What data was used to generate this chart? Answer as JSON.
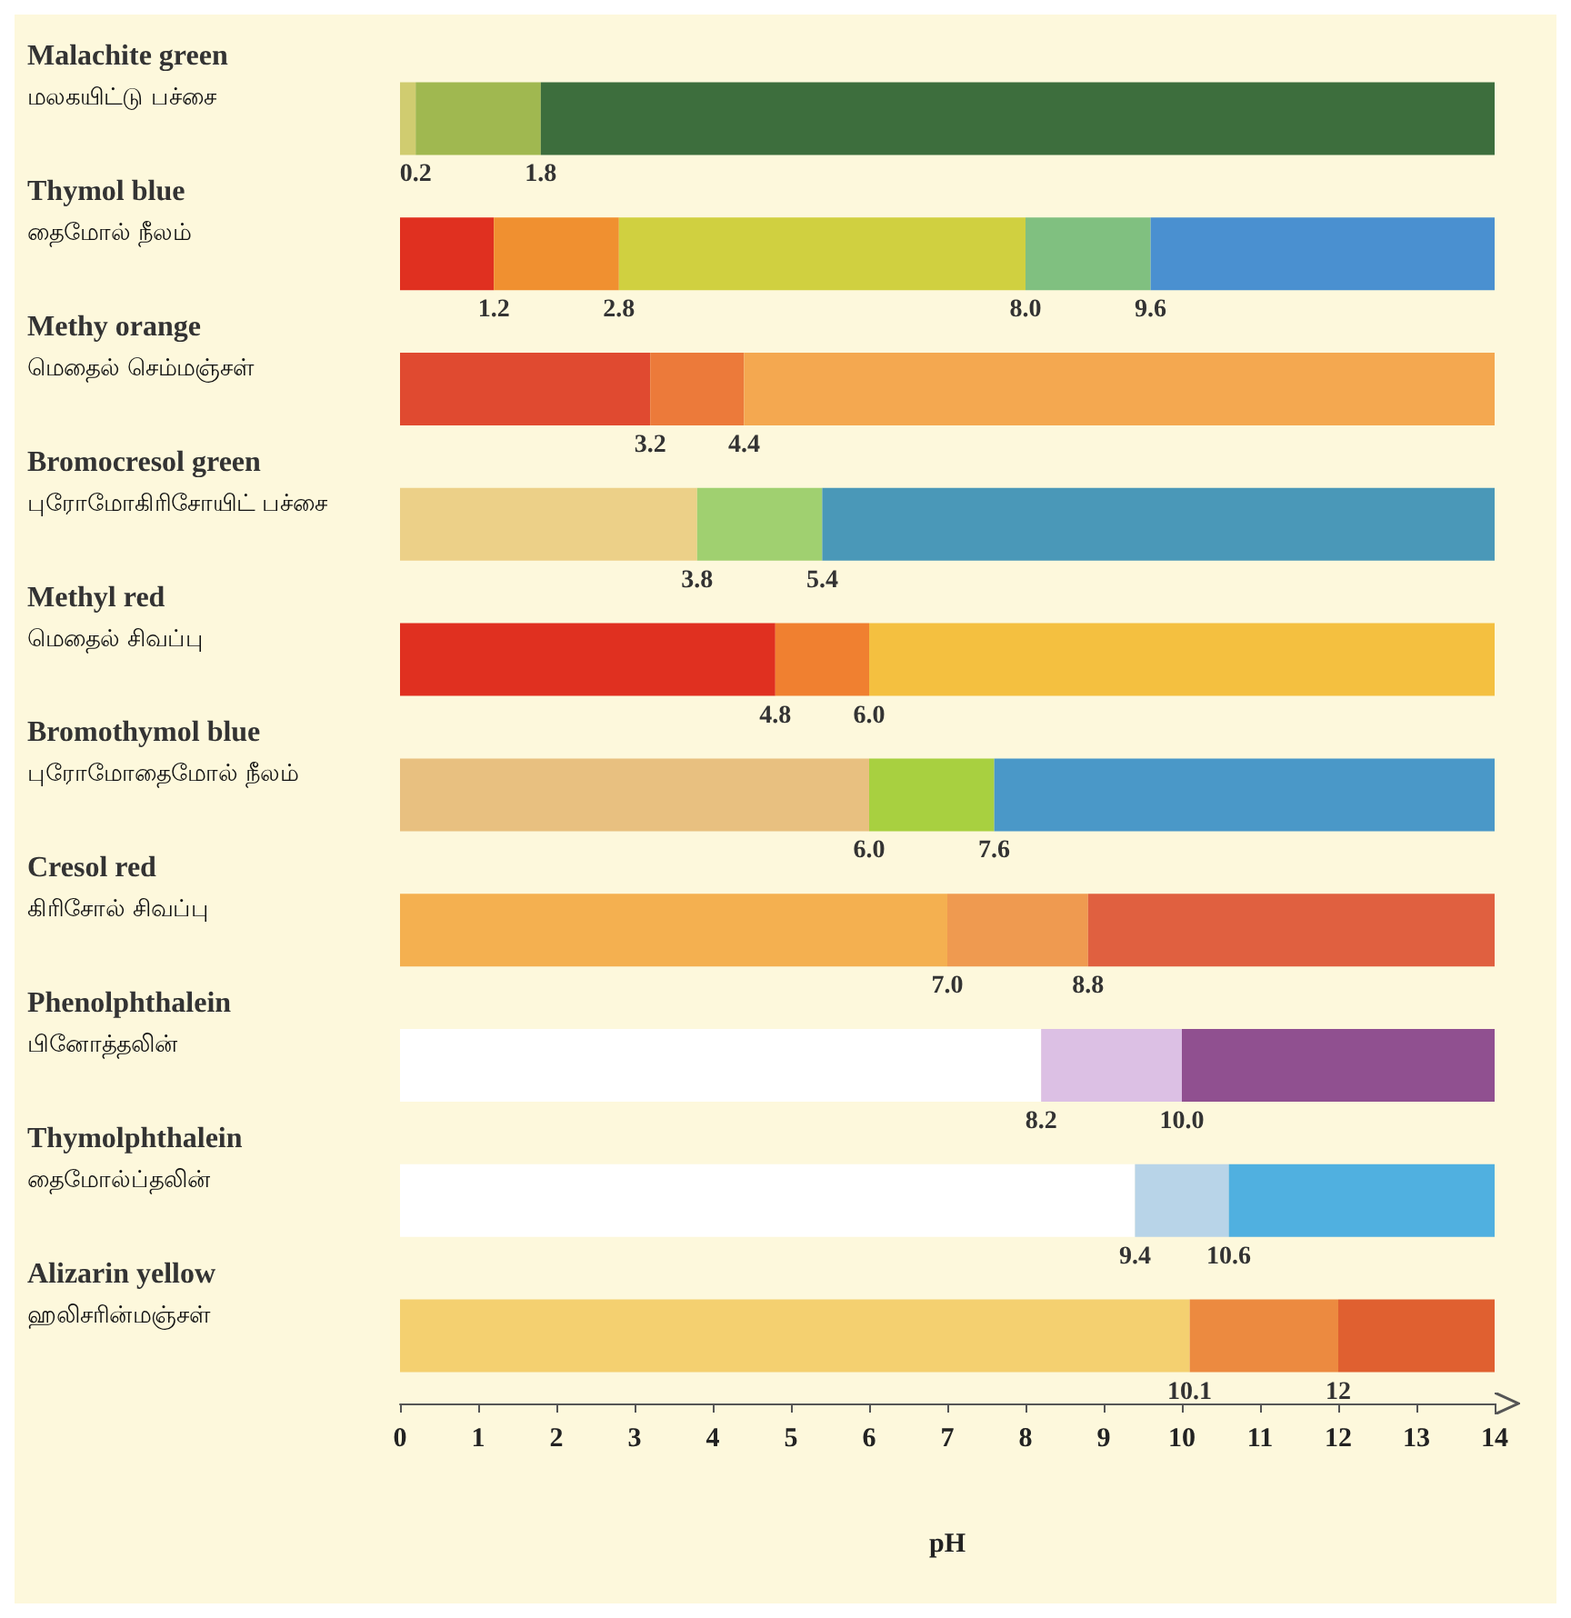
{
  "chart_data": {
    "type": "bar",
    "orientation": "horizontal",
    "stacked": true,
    "xlabel": "pH",
    "xlim": [
      0,
      14
    ],
    "xticks": [
      0,
      1,
      2,
      3,
      4,
      5,
      6,
      7,
      8,
      9,
      10,
      11,
      12,
      13,
      14
    ],
    "categories": [
      "Malachite green\nமலகயிட்டு பச்சை",
      "Thymol blue\nதைமோல் நீலம்",
      "Methy orange\nமெதைல் செம்மஞ்சள்",
      "Bromocresol green\nபுரோமோகிரிசோயிட் பச்சை",
      "Methyl red\nமெதைல் சிவப்பு",
      "Bromothymol blue\nபுரோமோதைமோல் நீலம்",
      "Cresol red\nகிரிசோல் சிவப்பு",
      "Phenolphthalein\nபினோத்தலின்",
      "Thymolphthalein\nதைமோல்ப்தலின்",
      "Alizarin yellow\nஹலிசரின்மஞ்சள்"
    ],
    "series": [
      {
        "values": [
          0.2,
          1.2,
          3.2,
          3.8,
          4.8,
          6.0,
          7.0,
          8.2,
          9.4,
          10.1
        ],
        "colors": [
          "#d0cc70",
          "#e03020",
          "#e04a30",
          "#ecd088",
          "#e03020",
          "#e8c080",
          "#f4b050",
          "#ffffff",
          "#ffffff",
          "#f4d070"
        ]
      },
      {
        "values": [
          1.6,
          1.6,
          1.2,
          1.6,
          1.2,
          1.6,
          1.8,
          1.8,
          1.2,
          1.9
        ],
        "colors": [
          "#a0b850",
          "#f09030",
          "#ec7a3a",
          "#a0d070",
          "#f08030",
          "#a8d040",
          "#ef9a50",
          "#dcc0e4",
          "#b8d4e8",
          "#ec8a40"
        ]
      },
      {
        "values": [
          12.2,
          5.2,
          9.6,
          8.6,
          8.0,
          6.4,
          5.2,
          4.0,
          3.4,
          2.0
        ],
        "colors": [
          "#3d6e3d",
          "#d0d040",
          "#f4a850",
          "#4a98b8",
          "#f4c040",
          "#4a98c8",
          "#e06040",
          "#905090",
          "#50b0e0",
          "#e06030"
        ]
      },
      {
        "values": [
          null,
          1.6,
          null,
          null,
          null,
          null,
          null,
          null,
          null,
          null
        ],
        "colors": [
          null,
          "#80c080",
          null,
          null,
          null,
          null,
          null,
          null,
          null,
          null
        ]
      },
      {
        "values": [
          null,
          4.4,
          null,
          null,
          null,
          null,
          null,
          null,
          null,
          null
        ],
        "colors": [
          null,
          "#4a90d0",
          null,
          null,
          null,
          null,
          null,
          null,
          null,
          null
        ]
      }
    ],
    "annotations": [
      {
        "text": "0.2",
        "x": 0.2,
        "y": "Malachite green\nமலகயிட்டு பச்சை"
      },
      {
        "text": "1.8",
        "x": 1.8,
        "y": "Malachite green\nமலகயிட்டு பச்சை"
      },
      {
        "text": "1.2",
        "x": 1.2,
        "y": "Thymol blue\nதைமோல் நீலம்"
      },
      {
        "text": "2.8",
        "x": 2.8,
        "y": "Thymol blue\nதைமோல் நீலம்"
      },
      {
        "text": "8.0",
        "x": 8.0,
        "y": "Thymol blue\nதைமோல் நீலம்"
      },
      {
        "text": "9.6",
        "x": 9.6,
        "y": "Thymol blue\nதைமோல் நீலம்"
      },
      {
        "text": "3.2",
        "x": 3.2,
        "y": "Methy orange\nமெதைல் செம்மஞ்சள்"
      },
      {
        "text": "4.4",
        "x": 4.4,
        "y": "Methy orange\nமெதைல் செம்மஞ்சள்"
      },
      {
        "text": "3.8",
        "x": 3.8,
        "y": "Bromocresol green\nபுரோமோகிரிசோயிட் பச்சை"
      },
      {
        "text": "5.4",
        "x": 5.4,
        "y": "Bromocresol green\nபுரோமோகிரிசோயிட் பச்சை"
      },
      {
        "text": "4.8",
        "x": 4.8,
        "y": "Methyl red\nமெதைல் சிவப்பு"
      },
      {
        "text": "6.0",
        "x": 6.0,
        "y": "Methyl red\nமெதைல் சிவப்பு"
      },
      {
        "text": "6.0",
        "x": 6.0,
        "y": "Bromothymol blue\nபுரோமோதைமோல் நீலம்"
      },
      {
        "text": "7.6",
        "x": 7.6,
        "y": "Bromothymol blue\nபுரோமோதைமோல் நீலம்"
      },
      {
        "text": "7.0",
        "x": 7.0,
        "y": "Cresol red\nகிரிசோல் சிவப்பு"
      },
      {
        "text": "8.8",
        "x": 8.8,
        "y": "Cresol red\nகிரிசோல் சிவப்பு"
      },
      {
        "text": "8.2",
        "x": 8.2,
        "y": "Phenolphthalein\nபினோத்தலின்"
      },
      {
        "text": "10.0",
        "x": 10.0,
        "y": "Phenolphthalein\nபினோத்தலின்"
      },
      {
        "text": "9.4",
        "x": 9.4,
        "y": "Thymolphthalein\nதைமோல்ப்தலின்"
      },
      {
        "text": "10.6",
        "x": 10.6,
        "y": "Thymolphthalein\nதைமோல்ப்தலின்"
      },
      {
        "text": "10.1",
        "x": 10.1,
        "y": "Alizarin yellow\nஹலிசரின்மஞ்சள்"
      },
      {
        "text": "12",
        "x": 12,
        "y": "Alizarin yellow\nஹலிசரின்மஞ்சள்"
      }
    ]
  }
}
